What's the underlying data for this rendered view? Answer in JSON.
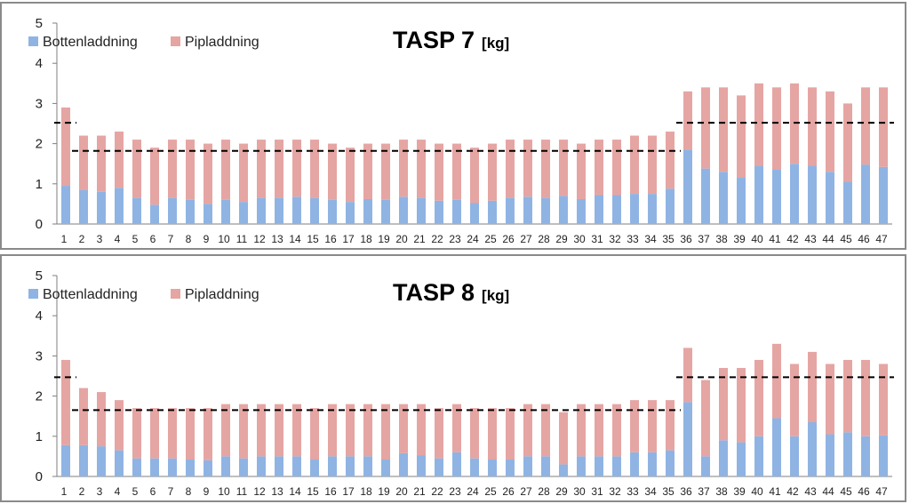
{
  "colors": {
    "bottom": "#8fb4e3",
    "pipe": "#e5a5a3",
    "axis": "#7f7f7f",
    "reference": "#000000"
  },
  "chart_data": [
    {
      "type": "bar",
      "stacked": true,
      "title": "TASP 7",
      "title_unit": "[kg]",
      "xlabel": "",
      "ylabel": "",
      "ylim": [
        0,
        5
      ],
      "yticks": [
        0,
        1,
        2,
        3,
        4,
        5
      ],
      "grid": false,
      "legend": "top-left",
      "categories": [
        "1",
        "2",
        "3",
        "4",
        "5",
        "6",
        "7",
        "8",
        "9",
        "10",
        "11",
        "12",
        "13",
        "14",
        "15",
        "16",
        "17",
        "18",
        "19",
        "20",
        "21",
        "22",
        "23",
        "24",
        "25",
        "26",
        "27",
        "28",
        "29",
        "30",
        "31",
        "32",
        "33",
        "34",
        "35",
        "36",
        "37",
        "38",
        "39",
        "40",
        "41",
        "42",
        "43",
        "44",
        "45",
        "46",
        "47"
      ],
      "series": [
        {
          "name": "Bottenladdning",
          "color": "#8fb4e3",
          "values": [
            0.95,
            0.85,
            0.8,
            0.9,
            0.65,
            0.48,
            0.65,
            0.6,
            0.5,
            0.6,
            0.55,
            0.65,
            0.65,
            0.68,
            0.65,
            0.6,
            0.55,
            0.62,
            0.6,
            0.68,
            0.65,
            0.58,
            0.6,
            0.52,
            0.58,
            0.65,
            0.68,
            0.65,
            0.7,
            0.62,
            0.72,
            0.72,
            0.75,
            0.75,
            0.88,
            1.85,
            1.38,
            1.3,
            1.15,
            1.45,
            1.35,
            1.5,
            1.45,
            1.3,
            1.05,
            1.48,
            1.42
          ]
        },
        {
          "name": "Pipladdning",
          "color": "#e5a5a3",
          "values": [
            1.95,
            1.35,
            1.4,
            1.4,
            1.45,
            1.42,
            1.45,
            1.5,
            1.5,
            1.5,
            1.45,
            1.45,
            1.45,
            1.42,
            1.45,
            1.4,
            1.35,
            1.38,
            1.4,
            1.42,
            1.45,
            1.42,
            1.4,
            1.38,
            1.42,
            1.45,
            1.42,
            1.45,
            1.4,
            1.38,
            1.38,
            1.38,
            1.45,
            1.45,
            1.42,
            1.45,
            2.02,
            2.1,
            2.05,
            2.05,
            2.05,
            2.0,
            1.95,
            2.0,
            1.95,
            1.92,
            1.98
          ]
        }
      ],
      "reference_lines": [
        {
          "from_category": "1",
          "to_category": "1",
          "y": 2.52
        },
        {
          "from_category": "2",
          "to_category": "35",
          "y": 1.82
        },
        {
          "from_category": "36",
          "to_category": "47",
          "y": 2.52
        }
      ]
    },
    {
      "type": "bar",
      "stacked": true,
      "title": "TASP 8",
      "title_unit": "[kg]",
      "xlabel": "",
      "ylabel": "",
      "ylim": [
        0,
        5
      ],
      "yticks": [
        0,
        1,
        2,
        3,
        4,
        5
      ],
      "grid": false,
      "legend": "top-left",
      "categories": [
        "1",
        "2",
        "3",
        "4",
        "5",
        "6",
        "7",
        "8",
        "9",
        "10",
        "11",
        "12",
        "13",
        "14",
        "15",
        "16",
        "17",
        "18",
        "19",
        "20",
        "21",
        "22",
        "23",
        "24",
        "25",
        "26",
        "27",
        "28",
        "29",
        "30",
        "31",
        "32",
        "33",
        "34",
        "35",
        "36",
        "37",
        "38",
        "39",
        "40",
        "41",
        "42",
        "43",
        "44",
        "45",
        "46",
        "47"
      ],
      "series": [
        {
          "name": "Bottenladdning",
          "color": "#8fb4e3",
          "values": [
            0.78,
            0.78,
            0.75,
            0.65,
            0.45,
            0.45,
            0.45,
            0.42,
            0.4,
            0.5,
            0.45,
            0.5,
            0.5,
            0.5,
            0.42,
            0.5,
            0.5,
            0.5,
            0.42,
            0.58,
            0.52,
            0.45,
            0.6,
            0.45,
            0.42,
            0.42,
            0.5,
            0.5,
            0.3,
            0.5,
            0.5,
            0.5,
            0.6,
            0.6,
            0.65,
            1.85,
            0.5,
            0.9,
            0.85,
            1.0,
            1.45,
            1.0,
            1.35,
            1.05,
            1.1,
            1.0,
            1.02
          ]
        },
        {
          "name": "Pipladdning",
          "color": "#e5a5a3",
          "values": [
            2.12,
            1.42,
            1.35,
            1.25,
            1.25,
            1.25,
            1.25,
            1.28,
            1.3,
            1.3,
            1.35,
            1.3,
            1.3,
            1.3,
            1.28,
            1.3,
            1.3,
            1.3,
            1.38,
            1.22,
            1.28,
            1.25,
            1.2,
            1.25,
            1.28,
            1.28,
            1.3,
            1.3,
            1.3,
            1.3,
            1.3,
            1.3,
            1.3,
            1.3,
            1.25,
            1.35,
            1.9,
            1.8,
            1.85,
            1.9,
            1.85,
            1.8,
            1.75,
            1.75,
            1.8,
            1.9,
            1.78
          ]
        }
      ],
      "reference_lines": [
        {
          "from_category": "1",
          "to_category": "1",
          "y": 2.47
        },
        {
          "from_category": "2",
          "to_category": "35",
          "y": 1.65
        },
        {
          "from_category": "36",
          "to_category": "47",
          "y": 2.47
        }
      ]
    }
  ]
}
